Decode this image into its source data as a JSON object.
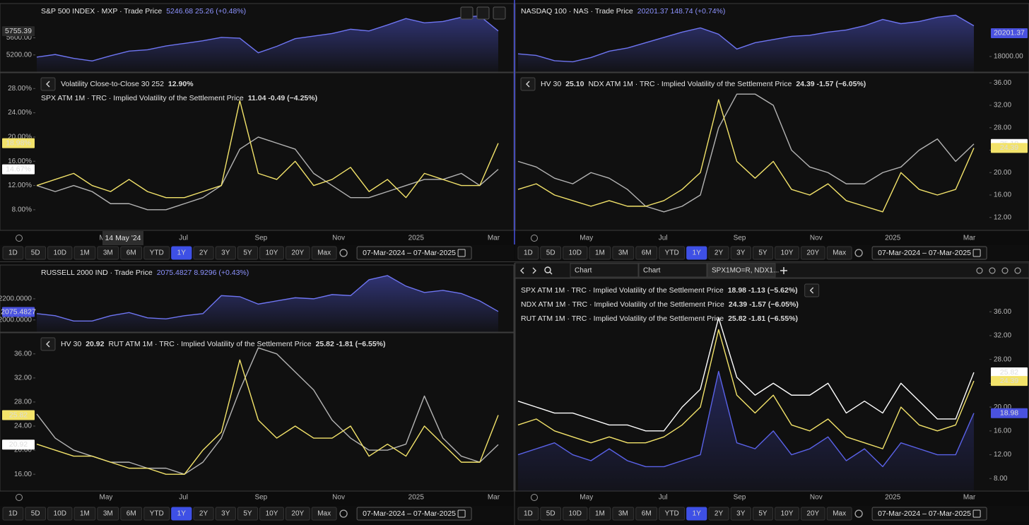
{
  "panels": [
    {
      "currency": "USD",
      "title": "S&P 500 INDEX · MXP · Trade Price",
      "quote": "5246.68  25.26 (+0.48%)",
      "price": {
        "color": "#6e75f2",
        "ylim": [
          4800,
          6400
        ],
        "yticks": [
          {
            "value": 5200,
            "label": "5200.00"
          },
          {
            "value": 5600,
            "label": "5600.00"
          }
        ],
        "values": [
          5150,
          5210,
          5120,
          5060,
          5180,
          5290,
          5320,
          5410,
          5470,
          5530,
          5610,
          5590,
          5250,
          5400,
          5580,
          5640,
          5700,
          5800,
          5760,
          5900,
          6050,
          5950,
          5980,
          6080,
          6110,
          5760
        ],
        "badge": {
          "value": 5755.39,
          "label": "5755.39",
          "color": "#2a2a2a",
          "text_color": "#ffffff"
        }
      },
      "vol": {
        "ylim": [
          4.6,
          30.6
        ],
        "yticks": [
          {
            "value": 8,
            "label": "8.00%"
          },
          {
            "value": 12,
            "label": "12.00%"
          },
          {
            "value": 16,
            "label": "16.00%"
          },
          {
            "value": 20,
            "label": "20.00%"
          },
          {
            "value": 24,
            "label": "24.00%"
          },
          {
            "value": 28,
            "label": "28.00%"
          }
        ],
        "series": [
          {
            "name": "Volatility Close-to-Close 30 252",
            "readout": "12.90%",
            "color": "#b4b4b4",
            "legend_color": "#ffffff",
            "values": [
              12,
              11,
              12,
              11,
              9,
              9,
              8,
              8,
              9,
              10,
              12,
              18,
              20,
              19,
              18,
              14,
              12,
              10,
              10,
              11,
              12,
              13,
              13,
              14,
              12,
              14.67
            ]
          },
          {
            "name": "SPX ATM 1M · TRC · Implied Volatility of the Settlement Price",
            "readout": "11.04 -0.49 (−4.25%)",
            "color": "#f3e36a",
            "legend_color": "#f3e36a",
            "values": [
              12,
              13,
              14,
              12,
              11,
              13,
              11,
              10,
              10,
              11,
              12,
              26,
              14,
              13,
              16,
              12,
              13,
              15,
              11,
              13,
              10,
              14,
              13,
              12,
              12,
              18.98
            ]
          }
        ],
        "badges": [
          {
            "value": 18.98,
            "label": "18.98%",
            "color": "#f3e36a",
            "text_color": "#000000"
          },
          {
            "value": 14.67,
            "label": "14.67%",
            "color": "#ffffff",
            "text_color": "#000000"
          }
        ]
      },
      "xlabels": [
        "May",
        "Jul",
        "Sep",
        "Nov",
        "2025",
        "Mar"
      ],
      "crosshair_label": "14 May '24",
      "ranges": [
        "1D",
        "5D",
        "10D",
        "1M",
        "3M",
        "6M",
        "YTD",
        "1Y",
        "2Y",
        "3Y",
        "5Y",
        "10Y",
        "20Y",
        "Max"
      ],
      "active_range": "1Y",
      "date_range": "07-Mar-2024  –  07-Mar-2025"
    },
    {
      "currency": "USD",
      "title": "NASDAQ 100 · NAS · Trade Price",
      "quote": "20201.37  148.74 (+0.74%)",
      "price": {
        "color": "#6e75f2",
        "ylim": [
          16530,
          23000
        ],
        "yticks": [
          {
            "value": 18000,
            "label": "18000.00"
          }
        ],
        "values": [
          18250,
          18100,
          17600,
          17500,
          17900,
          18500,
          18800,
          19300,
          19800,
          20300,
          20700,
          20100,
          18700,
          19300,
          19600,
          19900,
          20000,
          20300,
          20500,
          20900,
          21500,
          21100,
          21300,
          21700,
          21900,
          20900
        ],
        "badge": {
          "value": 20201.37,
          "label": "20201.37",
          "color": "#4a52e0",
          "text_color": "#ffffff"
        }
      },
      "vol": {
        "ylim": [
          9.7,
          37.8
        ],
        "yticks": [
          {
            "value": 12,
            "label": "12.00"
          },
          {
            "value": 16,
            "label": "16.00"
          },
          {
            "value": 20,
            "label": "20.00"
          },
          {
            "value": 24,
            "label": "24.00"
          },
          {
            "value": 28,
            "label": "28.00"
          },
          {
            "value": 32,
            "label": "32.00"
          },
          {
            "value": 36,
            "label": "36.00"
          }
        ],
        "series": [
          {
            "name": "HV 30",
            "readout": "25.10",
            "color": "#b4b4b4",
            "legend_color": "#ffffff",
            "values": [
              22,
              21,
              19,
              18,
              20,
              19,
              17,
              14,
              13,
              14,
              16,
              28,
              34,
              34,
              32,
              24,
              21,
              20,
              18,
              18,
              20,
              21,
              24,
              26,
              22,
              25.1
            ]
          },
          {
            "name": "NDX ATM 1M · TRC · Implied Volatility of the Settlement Price",
            "readout": "24.39  -1.57 (−6.05%)",
            "color": "#f3e36a",
            "legend_color": "#f3e36a",
            "values": [
              17,
              18,
              16,
              15,
              14,
              15,
              14,
              14,
              15,
              17,
              20,
              33,
              22,
              19,
              22,
              17,
              16,
              18,
              15,
              14,
              13,
              20,
              17,
              16,
              17,
              24.39
            ]
          }
        ],
        "badges": [
          {
            "value": 25.1,
            "label": "25.10",
            "color": "#ffffff",
            "text_color": "#000000"
          },
          {
            "value": 24.39,
            "label": "24.39",
            "color": "#f3e36a",
            "text_color": "#000000"
          }
        ]
      },
      "xlabels": [
        "May",
        "Jul",
        "Sep",
        "Nov",
        "2025",
        "Mar"
      ],
      "ranges": [
        "1D",
        "5D",
        "10D",
        "1M",
        "3M",
        "6M",
        "YTD",
        "1Y",
        "2Y",
        "3Y",
        "5Y",
        "10Y",
        "20Y",
        "Max"
      ],
      "active_range": "1Y",
      "date_range": "07-Mar-2024  –  07-Mar-2025"
    },
    {
      "currency": "USD",
      "title": "RUSSELL 2000 IND · Trade Price",
      "quote": "2075.4827  8.9296 (+0.43%)",
      "price": {
        "color": "#6e75f2",
        "ylim": [
          1885,
          2520
        ],
        "yticks": [
          {
            "value": 2000,
            "label": "2000.0000"
          },
          {
            "value": 2200,
            "label": "2200.0000"
          }
        ],
        "values": [
          2060,
          2040,
          1990,
          1990,
          2040,
          2070,
          2020,
          2010,
          2040,
          2060,
          2230,
          2220,
          2150,
          2180,
          2210,
          2200,
          2240,
          2230,
          2380,
          2420,
          2320,
          2260,
          2280,
          2250,
          2180,
          2080
        ],
        "badge": {
          "value": 2075.4827,
          "label": "2075.4827",
          "color": "#4a52e0",
          "text_color": "#ffffff"
        }
      },
      "vol": {
        "ylim": [
          13.2,
          39.5
        ],
        "yticks": [
          {
            "value": 16,
            "label": "16.00"
          },
          {
            "value": 20,
            "label": "20.00"
          },
          {
            "value": 24,
            "label": "24.00"
          },
          {
            "value": 28,
            "label": "28.00"
          },
          {
            "value": 32,
            "label": "32.00"
          },
          {
            "value": 36,
            "label": "36.00"
          }
        ],
        "series": [
          {
            "name": "HV 30",
            "readout": "20.92",
            "color": "#b4b4b4",
            "legend_color": "#ffffff",
            "values": [
              26,
              22,
              20,
              19,
              18,
              18,
              17,
              17,
              16,
              18,
              22,
              30,
              37,
              36,
              33,
              30,
              25,
              22,
              20,
              20,
              21,
              29,
              22,
              19,
              18,
              20.92
            ]
          },
          {
            "name": "RUT ATM 1M · TRC · Implied Volatility of the Settlement Price",
            "readout": "25.82  -1.81 (−6.55%)",
            "color": "#f3e36a",
            "legend_color": "#f3e36a",
            "values": [
              21,
              20,
              19,
              19,
              18,
              17,
              17,
              16,
              16,
              20,
              23,
              35,
              25,
              22,
              24,
              22,
              22,
              24,
              19,
              21,
              19,
              24,
              21,
              18,
              18,
              25.82
            ]
          }
        ],
        "badges": [
          {
            "value": 25.82,
            "label": "25.82",
            "color": "#f3e36a",
            "text_color": "#000000"
          },
          {
            "value": 20.92,
            "label": "20.92",
            "color": "#ffffff",
            "text_color": "#000000"
          }
        ]
      },
      "xlabels": [
        "May",
        "Jul",
        "Sep",
        "Nov",
        "2025",
        "Mar"
      ],
      "ranges": [
        "1D",
        "5D",
        "10D",
        "1M",
        "3M",
        "6M",
        "YTD",
        "1Y",
        "2Y",
        "3Y",
        "5Y",
        "10Y",
        "20Y",
        "Max"
      ],
      "active_range": "1Y",
      "date_range": "07-Mar-2024  –  07-Mar-2025"
    },
    {
      "currency": "USD",
      "tabs": [
        "Chart",
        "Chart",
        "SPX1MO=R, NDX1..."
      ],
      "vol": {
        "ylim": [
          5.9,
          41.6
        ],
        "yticks": [
          {
            "value": 8,
            "label": "8.00"
          },
          {
            "value": 12,
            "label": "12.00"
          },
          {
            "value": 16,
            "label": "16.00"
          },
          {
            "value": 20,
            "label": "20.00"
          },
          {
            "value": 24,
            "label": "24.00"
          },
          {
            "value": 28,
            "label": "28.00"
          },
          {
            "value": 32,
            "label": "32.00"
          },
          {
            "value": 36,
            "label": "36.00"
          }
        ],
        "series": [
          {
            "name": "SPX ATM 1M · TRC · Implied Volatility of the Settlement Price",
            "readout": "18.98  -1.13 (−5.62%)",
            "color": "#5a62e8",
            "legend_color": "#7c83ff",
            "fill_area": true,
            "values": [
              12,
              13,
              14,
              12,
              11,
              13,
              11,
              10,
              10,
              11,
              12,
              26,
              14,
              13,
              16,
              12,
              13,
              15,
              11,
              13,
              10,
              14,
              13,
              12,
              12,
              18.98
            ]
          },
          {
            "name": "NDX ATM 1M · TRC · Implied Volatility of the Settlement Price",
            "readout": "24.39  -1.57 (−6.05%)",
            "color": "#f3e36a",
            "legend_color": "#f3e36a",
            "values": [
              17,
              18,
              16,
              15,
              14,
              15,
              14,
              14,
              15,
              17,
              20,
              33,
              22,
              19,
              22,
              17,
              16,
              18,
              15,
              14,
              13,
              20,
              17,
              16,
              17,
              24.39
            ]
          },
          {
            "name": "RUT ATM 1M · TRC · Implied Volatility of the Settlement Price",
            "readout": "25.82  -1.81 (−6.55%)",
            "color": "#ffffff",
            "legend_color": "#ffffff",
            "values": [
              21,
              20,
              19,
              19,
              18,
              17,
              17,
              16,
              16,
              20,
              23,
              35,
              25,
              22,
              24,
              22,
              22,
              24,
              19,
              21,
              19,
              24,
              21,
              18,
              18,
              25.82
            ]
          }
        ],
        "badges": [
          {
            "value": 25.82,
            "label": "25.82",
            "color": "#ffffff",
            "text_color": "#000000"
          },
          {
            "value": 24.39,
            "label": "24.39",
            "color": "#f3e36a",
            "text_color": "#000000"
          },
          {
            "value": 18.98,
            "label": "18.98",
            "color": "#4a52e0",
            "text_color": "#ffffff"
          }
        ]
      },
      "xlabels": [
        "May",
        "Jul",
        "Sep",
        "Nov",
        "2025",
        "Mar"
      ],
      "ranges": [
        "1D",
        "5D",
        "10D",
        "1M",
        "3M",
        "6M",
        "YTD",
        "1Y",
        "2Y",
        "3Y",
        "5Y",
        "10Y",
        "20Y",
        "Max"
      ],
      "active_range": "1Y",
      "date_range": "07-Mar-2024  –  07-Mar-2025"
    }
  ]
}
